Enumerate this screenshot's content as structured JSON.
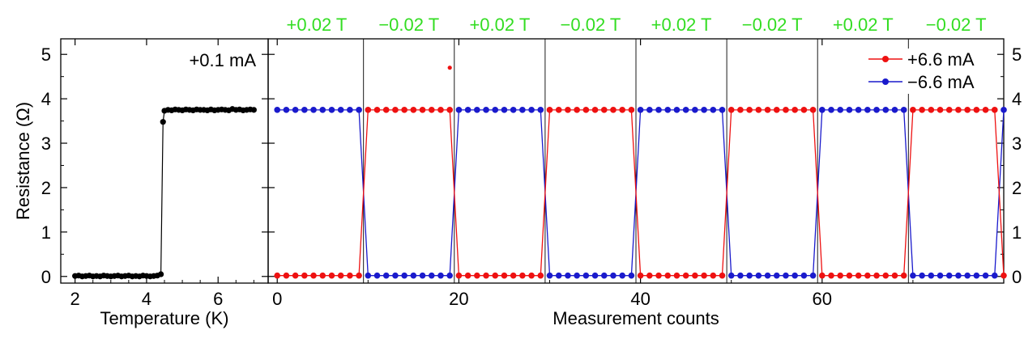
{
  "chart_data": [
    {
      "type": "scatter",
      "xlabel": "Temperature (K)",
      "ylabel": "Resistance (Ω)",
      "annotation": "+0.1 mA",
      "xlim": [
        1.6,
        7.4
      ],
      "ylim": [
        -0.15,
        5.35
      ],
      "xticks": [
        2,
        4,
        6
      ],
      "yticks": [
        0,
        1,
        2,
        3,
        4,
        5
      ],
      "series": [
        {
          "color": "#000000",
          "x": [
            2.0,
            2.1,
            2.2,
            2.3,
            2.4,
            2.5,
            2.6,
            2.7,
            2.8,
            2.9,
            3.0,
            3.1,
            3.2,
            3.3,
            3.4,
            3.5,
            3.6,
            3.7,
            3.8,
            3.9,
            4.0,
            4.1,
            4.2,
            4.3,
            4.4,
            4.46,
            4.5,
            4.6,
            4.7,
            4.8,
            4.9,
            5.0,
            5.1,
            5.2,
            5.3,
            5.4,
            5.5,
            5.6,
            5.7,
            5.8,
            5.9,
            6.0,
            6.1,
            6.2,
            6.3,
            6.4,
            6.5,
            6.6,
            6.7,
            6.8,
            6.9,
            7.0
          ],
          "y": [
            0.01,
            0.02,
            0.0,
            0.01,
            0.02,
            0.0,
            0.01,
            0.0,
            0.02,
            0.01,
            0.0,
            0.01,
            0.02,
            0.0,
            0.01,
            0.02,
            0.0,
            0.01,
            0.0,
            0.02,
            0.01,
            0.0,
            0.01,
            0.02,
            0.05,
            3.48,
            3.73,
            3.75,
            3.74,
            3.76,
            3.75,
            3.74,
            3.76,
            3.75,
            3.74,
            3.76,
            3.75,
            3.75,
            3.74,
            3.76,
            3.74,
            3.75,
            3.76,
            3.75,
            3.74,
            3.77,
            3.75,
            3.76,
            3.74,
            3.75,
            3.76,
            3.75
          ]
        }
      ]
    },
    {
      "type": "line",
      "xlabel": "Measurement counts",
      "xlim": [
        -1,
        80
      ],
      "ylim": [
        -0.15,
        5.35
      ],
      "xticks": [
        0,
        20,
        40,
        60
      ],
      "yticks": [
        0,
        1,
        2,
        3,
        4,
        5
      ],
      "switch_positions": [
        9.5,
        19.5,
        29.5,
        39.5,
        49.5,
        59.5,
        69.5
      ],
      "field_labels": [
        "+0.02 T",
        "−0.02 T",
        "+0.02 T",
        "−0.02 T",
        "+0.02 T",
        "−0.02 T",
        "+0.02 T",
        "−0.02 T"
      ],
      "legend_position": "top-right",
      "low_value": 0.02,
      "high_value": 3.75,
      "outlier": {
        "x": 19,
        "y": 4.7
      },
      "series": [
        {
          "name": "+6.6 mA",
          "color": "#ee1111",
          "start_state": "low"
        },
        {
          "name": "−6.6 mA",
          "color": "#1a1acc",
          "start_state": "high"
        }
      ]
    }
  ]
}
